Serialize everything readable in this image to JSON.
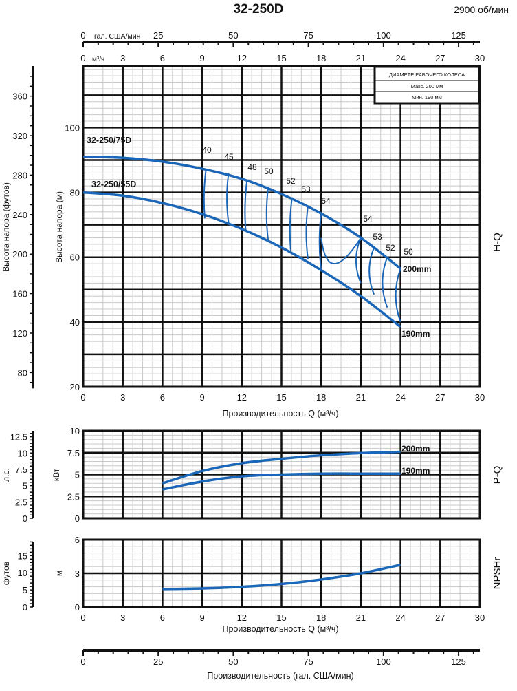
{
  "header": {
    "title": "32-250D",
    "speed": "2900 об/мин"
  },
  "top_axes": {
    "gpm_unit": "гал. США/мин",
    "gpm_ticks": [
      "0",
      "25",
      "50",
      "75",
      "100",
      "125"
    ],
    "m3h_unit": "м³/ч",
    "m3h_ticks": [
      "0",
      "3",
      "6",
      "9",
      "12",
      "15",
      "18",
      "21",
      "24",
      "27",
      "30"
    ]
  },
  "legend_box": {
    "title": "ДИАМЕТР РАБОЧЕГО КОЛЕСА",
    "max": "Макс. 200 мм",
    "min": "Мин. 190 мм"
  },
  "side_labels": {
    "hq": "H-Q",
    "pq": "P-Q",
    "npsh": "NPSHr"
  },
  "colors": {
    "curve": "#1a66b8",
    "grid": "#111111",
    "minor_grid": "#c8c8c8"
  },
  "chart_data": [
    {
      "type": "line",
      "name_panel": "H-Q",
      "xlabel": "Производительность Q (м³/ч)",
      "ylabel": "Высота напора (м)",
      "ylabel_secondary": "Высота напора (футов)",
      "xlim": [
        0,
        30
      ],
      "ylim": [
        20,
        119
      ],
      "x_ticks": [
        "0",
        "3",
        "6",
        "9",
        "12",
        "15",
        "18",
        "21",
        "24",
        "27",
        "30"
      ],
      "y_ticks": [
        "20",
        "40",
        "60",
        "80",
        "100"
      ],
      "y2_ticks": [
        "80",
        "120",
        "160",
        "200",
        "240",
        "280",
        "320",
        "360"
      ],
      "series": [
        {
          "name": "200mm",
          "model_label": "32-250/75D",
          "x": [
            0,
            3,
            6,
            9,
            12,
            15,
            18,
            21,
            24
          ],
          "y": [
            91,
            90.7,
            89.5,
            87.3,
            84.2,
            79.5,
            73.5,
            66,
            56.5
          ]
        },
        {
          "name": "190mm",
          "model_label": "32-250/55D",
          "x": [
            0,
            3,
            6,
            9,
            12,
            15,
            18,
            21,
            24
          ],
          "y": [
            80,
            79,
            76.7,
            73.3,
            68.7,
            63,
            56,
            48,
            38.5
          ]
        }
      ],
      "efficiency_labels": [
        "40",
        "45",
        "48",
        "50",
        "52",
        "53",
        "54",
        "54",
        "53",
        "52",
        "50"
      ],
      "efficiency_contours": [
        {
          "label": "40",
          "q": [
            9.3,
            9.2
          ],
          "h": [
            87.3,
            72
          ]
        },
        {
          "label": "45",
          "q": [
            11,
            11
          ],
          "h": [
            86,
            70.5
          ]
        },
        {
          "label": "48",
          "q": [
            12.4,
            12.3
          ],
          "h": [
            84,
            68
          ]
        },
        {
          "label": "50",
          "q": [
            14,
            14
          ],
          "h": [
            81.7,
            65
          ]
        },
        {
          "label": "52",
          "q": [
            15.8,
            15.7
          ],
          "h": [
            78.5,
            62
          ]
        },
        {
          "label": "53",
          "q": [
            17,
            17
          ],
          "h": [
            75.8,
            59.5
          ]
        },
        {
          "label": "54",
          "q": [
            18,
            18
          ],
          "h": [
            73.5,
            56
          ]
        },
        {
          "label": "54",
          "q": [
            21,
            21
          ],
          "h": [
            66,
            52
          ]
        },
        {
          "label": "53",
          "q": [
            22,
            22
          ],
          "h": [
            63,
            48.5
          ]
        },
        {
          "label": "52",
          "q": [
            23,
            23
          ],
          "h": [
            60,
            44.5
          ]
        },
        {
          "label": "50",
          "q": [
            24,
            24
          ],
          "h": [
            56.5,
            40
          ]
        }
      ]
    },
    {
      "type": "line",
      "name_panel": "P-Q",
      "xlim": [
        0,
        30
      ],
      "ylim": [
        0,
        10
      ],
      "ylabel": "кВт",
      "ylabel_secondary": "л.с.",
      "y_ticks": [
        "0",
        "2.5",
        "5",
        "7.5",
        "10"
      ],
      "y2_ticks": [
        "0",
        "2.5",
        "5",
        "7.5",
        "10",
        "12.5"
      ],
      "series": [
        {
          "name": "200mm",
          "x": [
            6,
            9,
            12,
            15,
            18,
            21,
            24
          ],
          "y": [
            4.0,
            5.4,
            6.3,
            6.8,
            7.2,
            7.45,
            7.6
          ]
        },
        {
          "name": "190mm",
          "x": [
            6,
            9,
            12,
            15,
            18,
            21,
            24
          ],
          "y": [
            3.3,
            4.2,
            4.8,
            5.0,
            5.1,
            5.1,
            5.1
          ]
        }
      ]
    },
    {
      "type": "line",
      "name_panel": "NPSHr",
      "xlabel": "Производительность Q (м³/ч)",
      "xlim": [
        0,
        30
      ],
      "ylim": [
        0,
        6
      ],
      "ylabel": "м",
      "ylabel_secondary": "футов",
      "x_ticks": [
        "0",
        "3",
        "6",
        "9",
        "12",
        "15",
        "18",
        "21",
        "24",
        "27",
        "30"
      ],
      "y_ticks": [
        "0",
        "3",
        "6"
      ],
      "y2_ticks": [
        "0",
        "5",
        "10",
        "15"
      ],
      "series": [
        {
          "name": "NPSHr",
          "x": [
            6,
            9,
            12,
            15,
            18,
            21,
            24
          ],
          "y": [
            1.6,
            1.65,
            1.8,
            2.05,
            2.45,
            3.0,
            3.75
          ]
        }
      ]
    }
  ],
  "bottom_axis": {
    "label": "Производительность (гал. США/мин)",
    "ticks": [
      "0",
      "25",
      "50",
      "75",
      "100",
      "125"
    ]
  }
}
